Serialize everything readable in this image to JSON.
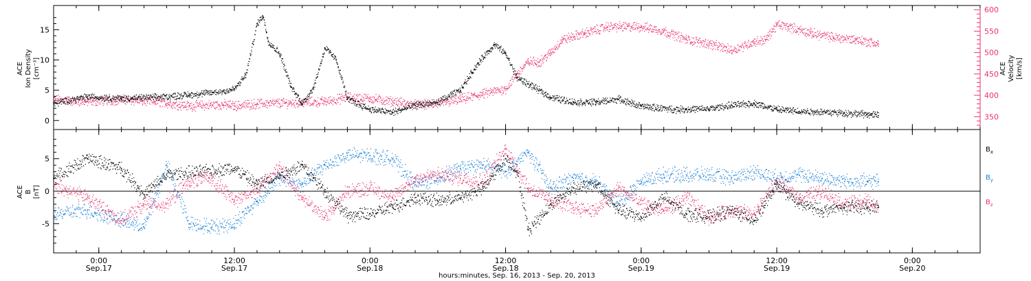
{
  "chart_data": [
    {
      "type": "scatter",
      "panel": "top",
      "title": "",
      "x_axis": {
        "type": "date",
        "range": [
          "2013-09-16T20:00",
          "2013-09-20T06:00"
        ]
      },
      "y_left": {
        "label_lines": [
          "ACE",
          "Ion Density",
          "[cm⁻³]"
        ],
        "range": [
          -1.5,
          19
        ],
        "ticks": [
          0,
          5,
          10,
          15
        ],
        "color": "#000000"
      },
      "y_right": {
        "label_lines": [
          "ACE",
          "Velocity",
          "[km/s]"
        ],
        "range": [
          320,
          610
        ],
        "ticks": [
          350,
          400,
          450,
          500,
          550,
          600
        ],
        "color": "#e8336b"
      },
      "series": [
        {
          "axis": "left",
          "color": "#000000",
          "points": [
            [
              "2013-09-16T20:00",
              2.8
            ],
            [
              "2013-09-16T23:00",
              3.9
            ],
            [
              "2013-09-17T02:00",
              3.6
            ],
            [
              "2013-09-17T05:00",
              3.8
            ],
            [
              "2013-09-17T08:00",
              4.2
            ],
            [
              "2013-09-17T11:00",
              4.8
            ],
            [
              "2013-09-17T12:00",
              5.2
            ],
            [
              "2013-09-17T13:00",
              7.5
            ],
            [
              "2013-09-17T14:00",
              16.0
            ],
            [
              "2013-09-17T14:30",
              17.3
            ],
            [
              "2013-09-17T15:00",
              13.0
            ],
            [
              "2013-09-17T16:00",
              11.0
            ],
            [
              "2013-09-17T17:00",
              5.5
            ],
            [
              "2013-09-17T18:00",
              2.8
            ],
            [
              "2013-09-17T19:00",
              5.5
            ],
            [
              "2013-09-17T20:00",
              12.0
            ],
            [
              "2013-09-17T21:00",
              10.0
            ],
            [
              "2013-09-17T22:00",
              3.5
            ],
            [
              "2013-09-18T00:00",
              1.8
            ],
            [
              "2013-09-18T02:00",
              1.3
            ],
            [
              "2013-09-18T04:00",
              2.5
            ],
            [
              "2013-09-18T06:00",
              3.0
            ],
            [
              "2013-09-18T08:00",
              5.0
            ],
            [
              "2013-09-18T09:00",
              8.0
            ],
            [
              "2013-09-18T10:00",
              10.5
            ],
            [
              "2013-09-18T11:00",
              12.5
            ],
            [
              "2013-09-18T12:00",
              11.0
            ],
            [
              "2013-09-18T13:00",
              7.0
            ],
            [
              "2013-09-18T14:00",
              6.0
            ],
            [
              "2013-09-18T16:00",
              3.8
            ],
            [
              "2013-09-18T18:00",
              3.0
            ],
            [
              "2013-09-18T20:00",
              3.0
            ],
            [
              "2013-09-18T22:00",
              3.5
            ],
            [
              "2013-09-19T00:00",
              2.3
            ],
            [
              "2013-09-19T03:00",
              1.8
            ],
            [
              "2013-09-19T06:00",
              1.9
            ],
            [
              "2013-09-19T08:00",
              2.5
            ],
            [
              "2013-09-19T10:00",
              2.8
            ],
            [
              "2013-09-19T12:00",
              1.8
            ],
            [
              "2013-09-19T14:00",
              1.5
            ],
            [
              "2013-09-19T16:00",
              1.4
            ],
            [
              "2013-09-19T18:00",
              1.2
            ],
            [
              "2013-09-19T20:00",
              1.0
            ],
            [
              "2013-09-19T21:00",
              0.8
            ]
          ]
        },
        {
          "axis": "right",
          "color": "#e8336b",
          "points": [
            [
              "2013-09-16T20:00",
              390
            ],
            [
              "2013-09-16T23:00",
              385
            ],
            [
              "2013-09-17T02:00",
              390
            ],
            [
              "2013-09-17T05:00",
              385
            ],
            [
              "2013-09-17T08:00",
              375
            ],
            [
              "2013-09-17T11:00",
              378
            ],
            [
              "2013-09-17T12:00",
              375
            ],
            [
              "2013-09-17T14:00",
              380
            ],
            [
              "2013-09-17T17:00",
              382
            ],
            [
              "2013-09-17T20:00",
              385
            ],
            [
              "2013-09-17T22:00",
              395
            ],
            [
              "2013-09-18T00:00",
              392
            ],
            [
              "2013-09-18T02:00",
              385
            ],
            [
              "2013-09-18T04:00",
              377
            ],
            [
              "2013-09-18T06:00",
              380
            ],
            [
              "2013-09-18T08:00",
              390
            ],
            [
              "2013-09-18T10:00",
              403
            ],
            [
              "2013-09-18T12:00",
              415
            ],
            [
              "2013-09-18T13:00",
              450
            ],
            [
              "2013-09-18T14:00",
              478
            ],
            [
              "2013-09-18T15:00",
              478
            ],
            [
              "2013-09-18T16:00",
              500
            ],
            [
              "2013-09-18T17:00",
              530
            ],
            [
              "2013-09-18T19:00",
              545
            ],
            [
              "2013-09-18T21:00",
              560
            ],
            [
              "2013-09-19T00:00",
              560
            ],
            [
              "2013-09-19T02:00",
              550
            ],
            [
              "2013-09-19T04:00",
              530
            ],
            [
              "2013-09-19T06:00",
              520
            ],
            [
              "2013-09-19T08:00",
              505
            ],
            [
              "2013-09-19T10:00",
              525
            ],
            [
              "2013-09-19T11:00",
              530
            ],
            [
              "2013-09-19T12:00",
              565
            ],
            [
              "2013-09-19T13:00",
              560
            ],
            [
              "2013-09-19T15:00",
              545
            ],
            [
              "2013-09-19T17:00",
              535
            ],
            [
              "2013-09-19T19:00",
              530
            ],
            [
              "2013-09-19T21:00",
              520
            ]
          ]
        }
      ]
    },
    {
      "type": "scatter",
      "panel": "bottom",
      "title": "",
      "x_axis": {
        "type": "date",
        "range": [
          "2013-09-16T20:00",
          "2013-09-20T06:00"
        ],
        "ticks": [
          {
            "time": "2013-09-17T00:00",
            "top": "0:00",
            "bottom": "Sep.17"
          },
          {
            "time": "2013-09-17T12:00",
            "top": "12:00",
            "bottom": "Sep.17"
          },
          {
            "time": "2013-09-18T00:00",
            "top": "0:00",
            "bottom": "Sep.18"
          },
          {
            "time": "2013-09-18T12:00",
            "top": "12:00",
            "bottom": "Sep.18"
          },
          {
            "time": "2013-09-19T00:00",
            "top": "0:00",
            "bottom": "Sep.19"
          },
          {
            "time": "2013-09-19T12:00",
            "top": "12:00",
            "bottom": "Sep.19"
          },
          {
            "time": "2013-09-20T00:00",
            "top": "0:00",
            "bottom": "Sep.20"
          }
        ],
        "label": "hours:minutes, Sep. 16, 2013 - Sep. 20, 2013"
      },
      "y_axis": {
        "label_lines": [
          "ACE",
          "B",
          "[nT]"
        ],
        "range": [
          -9.5,
          9.5
        ],
        "ticks": [
          -5,
          0,
          5
        ],
        "zero_line": true
      },
      "legend": {
        "placement": "right"
      },
      "series": [
        {
          "name": "Bx",
          "label_main": "B",
          "label_sub": "x",
          "color": "#000000",
          "points": [
            [
              "2013-09-16T20:00",
              2.0
            ],
            [
              "2013-09-16T23:00",
              5.0
            ],
            [
              "2013-09-17T02:00",
              3.5
            ],
            [
              "2013-09-17T04:00",
              -0.5
            ],
            [
              "2013-09-17T06:00",
              2.5
            ],
            [
              "2013-09-17T09:00",
              3.0
            ],
            [
              "2013-09-17T12:00",
              3.5
            ],
            [
              "2013-09-17T14:00",
              1.0
            ],
            [
              "2013-09-17T16:00",
              2.5
            ],
            [
              "2013-09-17T18:00",
              4.0
            ],
            [
              "2013-09-17T19:00",
              2.0
            ],
            [
              "2013-09-17T20:00",
              0.0
            ],
            [
              "2013-09-17T22:00",
              -3.8
            ],
            [
              "2013-09-18T00:00",
              -3.5
            ],
            [
              "2013-09-18T02:00",
              -2.5
            ],
            [
              "2013-09-18T04:00",
              -1.0
            ],
            [
              "2013-09-18T06:00",
              -1.5
            ],
            [
              "2013-09-18T08:00",
              -1.0
            ],
            [
              "2013-09-18T10:00",
              0.5
            ],
            [
              "2013-09-18T12:00",
              5.0
            ],
            [
              "2013-09-18T13:00",
              3.0
            ],
            [
              "2013-09-18T14:00",
              -6.0
            ],
            [
              "2013-09-18T16:00",
              -2.0
            ],
            [
              "2013-09-18T18:00",
              0.5
            ],
            [
              "2013-09-18T20:00",
              1.0
            ],
            [
              "2013-09-18T22:00",
              -3.0
            ],
            [
              "2013-09-19T00:00",
              -4.0
            ],
            [
              "2013-09-19T02:00",
              -1.0
            ],
            [
              "2013-09-19T04:00",
              -3.5
            ],
            [
              "2013-09-19T06:00",
              -4.0
            ],
            [
              "2013-09-19T08:00",
              -3.0
            ],
            [
              "2013-09-19T10:00",
              -4.5
            ],
            [
              "2013-09-19T12:00",
              1.0
            ],
            [
              "2013-09-19T14:00",
              -2.0
            ],
            [
              "2013-09-19T16:00",
              -3.0
            ],
            [
              "2013-09-19T18:00",
              -2.5
            ],
            [
              "2013-09-19T20:00",
              -2.5
            ],
            [
              "2013-09-19T21:00",
              -2.5
            ]
          ]
        },
        {
          "name": "By",
          "label_main": "B",
          "label_sub": "y",
          "color": "#1a7fd4",
          "points": [
            [
              "2013-09-16T20:00",
              -3.5
            ],
            [
              "2013-09-16T23:00",
              -3.0
            ],
            [
              "2013-09-17T02:00",
              -4.5
            ],
            [
              "2013-09-17T04:00",
              -5.5
            ],
            [
              "2013-09-17T06:00",
              4.0
            ],
            [
              "2013-09-17T08:00",
              -5.0
            ],
            [
              "2013-09-17T10:00",
              -5.5
            ],
            [
              "2013-09-17T12:00",
              -5.0
            ],
            [
              "2013-09-17T14:00",
              -1.5
            ],
            [
              "2013-09-17T16:00",
              2.0
            ],
            [
              "2013-09-17T18:00",
              1.0
            ],
            [
              "2013-09-17T20:00",
              4.0
            ],
            [
              "2013-09-17T22:00",
              5.5
            ],
            [
              "2013-09-18T00:00",
              5.5
            ],
            [
              "2013-09-18T02:00",
              5.0
            ],
            [
              "2013-09-18T04:00",
              1.0
            ],
            [
              "2013-09-18T06:00",
              2.0
            ],
            [
              "2013-09-18T08:00",
              3.5
            ],
            [
              "2013-09-18T10:00",
              4.0
            ],
            [
              "2013-09-18T12:00",
              3.0
            ],
            [
              "2013-09-18T14:00",
              6.0
            ],
            [
              "2013-09-18T16:00",
              0.5
            ],
            [
              "2013-09-18T18:00",
              2.0
            ],
            [
              "2013-09-18T20:00",
              1.5
            ],
            [
              "2013-09-18T22:00",
              -2.0
            ],
            [
              "2013-09-19T00:00",
              1.5
            ],
            [
              "2013-09-19T02:00",
              2.5
            ],
            [
              "2013-09-19T04:00",
              2.5
            ],
            [
              "2013-09-19T06:00",
              2.5
            ],
            [
              "2013-09-19T08:00",
              2.0
            ],
            [
              "2013-09-19T10:00",
              3.0
            ],
            [
              "2013-09-19T12:00",
              2.0
            ],
            [
              "2013-09-19T14:00",
              2.5
            ],
            [
              "2013-09-19T16:00",
              2.0
            ],
            [
              "2013-09-19T18:00",
              1.5
            ],
            [
              "2013-09-19T20:00",
              1.5
            ],
            [
              "2013-09-19T21:00",
              1.5
            ]
          ]
        },
        {
          "name": "Bz",
          "label_main": "B",
          "label_sub": "z",
          "color": "#e8336b",
          "points": [
            [
              "2013-09-16T20:00",
              1.0
            ],
            [
              "2013-09-16T23:00",
              -1.0
            ],
            [
              "2013-09-17T02:00",
              -4.5
            ],
            [
              "2013-09-17T04:00",
              -2.0
            ],
            [
              "2013-09-17T06:00",
              -2.0
            ],
            [
              "2013-09-17T08:00",
              1.5
            ],
            [
              "2013-09-17T10:00",
              2.0
            ],
            [
              "2013-09-17T12:00",
              -1.5
            ],
            [
              "2013-09-17T14:00",
              0.5
            ],
            [
              "2013-09-17T16:00",
              3.5
            ],
            [
              "2013-09-17T18:00",
              -1.0
            ],
            [
              "2013-09-17T20:00",
              -4.0
            ],
            [
              "2013-09-17T22:00",
              0.0
            ],
            [
              "2013-09-18T00:00",
              0.5
            ],
            [
              "2013-09-18T02:00",
              -1.0
            ],
            [
              "2013-09-18T04:00",
              2.0
            ],
            [
              "2013-09-18T06:00",
              2.5
            ],
            [
              "2013-09-18T08:00",
              2.0
            ],
            [
              "2013-09-18T10:00",
              1.5
            ],
            [
              "2013-09-18T12:00",
              6.5
            ],
            [
              "2013-09-18T14:00",
              0.5
            ],
            [
              "2013-09-18T16:00",
              -1.5
            ],
            [
              "2013-09-18T18:00",
              -2.5
            ],
            [
              "2013-09-18T20:00",
              -3.0
            ],
            [
              "2013-09-18T22:00",
              0.5
            ],
            [
              "2013-09-19T00:00",
              -2.0
            ],
            [
              "2013-09-19T02:00",
              -3.0
            ],
            [
              "2013-09-19T04:00",
              -1.0
            ],
            [
              "2013-09-19T06:00",
              -4.0
            ],
            [
              "2013-09-19T08:00",
              -3.0
            ],
            [
              "2013-09-19T10:00",
              -3.5
            ],
            [
              "2013-09-19T12:00",
              1.5
            ],
            [
              "2013-09-19T14:00",
              -1.0
            ],
            [
              "2013-09-19T16:00",
              0.0
            ],
            [
              "2013-09-19T18:00",
              -2.0
            ],
            [
              "2013-09-19T20:00",
              -1.5
            ],
            [
              "2013-09-19T21:00",
              -2.5
            ]
          ]
        }
      ]
    }
  ]
}
